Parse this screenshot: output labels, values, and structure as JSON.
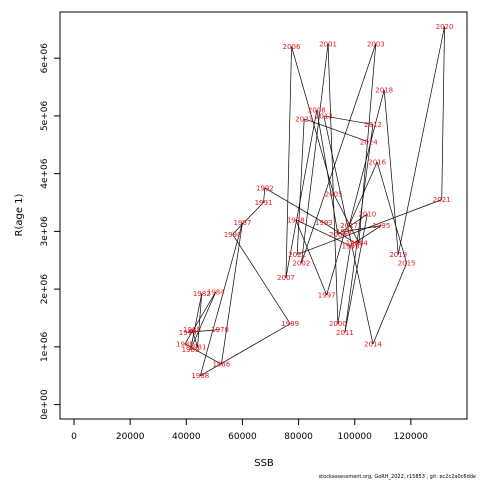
{
  "chart_data": {
    "type": "line",
    "xlabel": "SSB",
    "ylabel": "R(age 1)",
    "xlim": [
      -5000,
      140000
    ],
    "ylim": [
      -250000,
      6800000
    ],
    "x_ticks": [
      0,
      20000,
      40000,
      60000,
      80000,
      100000,
      120000
    ],
    "x_tick_labels": [
      "0",
      "20000",
      "40000",
      "60000",
      "80000",
      "100000",
      "120000"
    ],
    "y_ticks": [
      0,
      1000000,
      2000000,
      3000000,
      4000000,
      5000000,
      6000000
    ],
    "y_tick_labels": [
      "0e+00",
      "1e+06",
      "2e+06",
      "3e+06",
      "4e+06",
      "5e+06",
      "6e+06"
    ],
    "grid": false,
    "label_color": "#e8191e",
    "line_color": "#000000",
    "points": [
      {
        "year": "1978",
        "x": 52000,
        "y": 1300000
      },
      {
        "year": "1979",
        "x": 40500,
        "y": 1250000
      },
      {
        "year": "1980",
        "x": 42000,
        "y": 1300000
      },
      {
        "year": "1981",
        "x": 44000,
        "y": 1000000
      },
      {
        "year": "1982",
        "x": 45500,
        "y": 1920000
      },
      {
        "year": "1983",
        "x": 41500,
        "y": 950000
      },
      {
        "year": "1984",
        "x": 50500,
        "y": 1950000
      },
      {
        "year": "1985",
        "x": 39500,
        "y": 1050000
      },
      {
        "year": "1986",
        "x": 52500,
        "y": 700000
      },
      {
        "year": "1987",
        "x": 60000,
        "y": 3150000
      },
      {
        "year": "1988",
        "x": 45000,
        "y": 500000
      },
      {
        "year": "1989",
        "x": 77000,
        "y": 1400000
      },
      {
        "year": "1990",
        "x": 56500,
        "y": 2950000
      },
      {
        "year": "1991",
        "x": 67500,
        "y": 3500000
      },
      {
        "year": "1992",
        "x": 68000,
        "y": 3750000
      },
      {
        "year": "1993",
        "x": 89000,
        "y": 3150000
      },
      {
        "year": "1994",
        "x": 100000,
        "y": 2800000
      },
      {
        "year": "1995",
        "x": 109500,
        "y": 3100000
      },
      {
        "year": "1996",
        "x": 96500,
        "y": 3000000
      },
      {
        "year": "1997",
        "x": 90000,
        "y": 1900000
      },
      {
        "year": "1998",
        "x": 79000,
        "y": 3200000
      },
      {
        "year": "1999",
        "x": 98500,
        "y": 2750000
      },
      {
        "year": "2000",
        "x": 94000,
        "y": 1400000
      },
      {
        "year": "2001",
        "x": 90500,
        "y": 6250000
      },
      {
        "year": "2002",
        "x": 81000,
        "y": 2450000
      },
      {
        "year": "2003",
        "x": 107500,
        "y": 6250000
      },
      {
        "year": "2004",
        "x": 101500,
        "y": 2800000
      },
      {
        "year": "2005",
        "x": 92500,
        "y": 3650000
      },
      {
        "year": "2006",
        "x": 77500,
        "y": 6200000
      },
      {
        "year": "2007",
        "x": 75500,
        "y": 2200000
      },
      {
        "year": "2008",
        "x": 86500,
        "y": 5100000
      },
      {
        "year": "2009",
        "x": 94000,
        "y": 2950000
      },
      {
        "year": "2010",
        "x": 104500,
        "y": 3300000
      },
      {
        "year": "2011",
        "x": 96500,
        "y": 1250000
      },
      {
        "year": "2012",
        "x": 106500,
        "y": 4850000
      },
      {
        "year": "2013",
        "x": 89000,
        "y": 5000000
      },
      {
        "year": "2014",
        "x": 106500,
        "y": 1050000
      },
      {
        "year": "2015",
        "x": 118500,
        "y": 2450000
      },
      {
        "year": "2016",
        "x": 108000,
        "y": 4200000
      },
      {
        "year": "2017",
        "x": 98000,
        "y": 3100000
      },
      {
        "year": "2018",
        "x": 110500,
        "y": 5450000
      },
      {
        "year": "2019",
        "x": 115500,
        "y": 2600000
      },
      {
        "year": "2020",
        "x": 132000,
        "y": 6550000
      },
      {
        "year": "2021",
        "x": 131000,
        "y": 3550000
      },
      {
        "year": "2022",
        "x": 79500,
        "y": 2600000
      },
      {
        "year": "2023",
        "x": 82000,
        "y": 4950000
      },
      {
        "year": "2024",
        "x": 105000,
        "y": 4550000
      }
    ]
  },
  "footer": "stockassessment.org, GoRH_2022, r15853 , git: ec2c2a0c6dde"
}
